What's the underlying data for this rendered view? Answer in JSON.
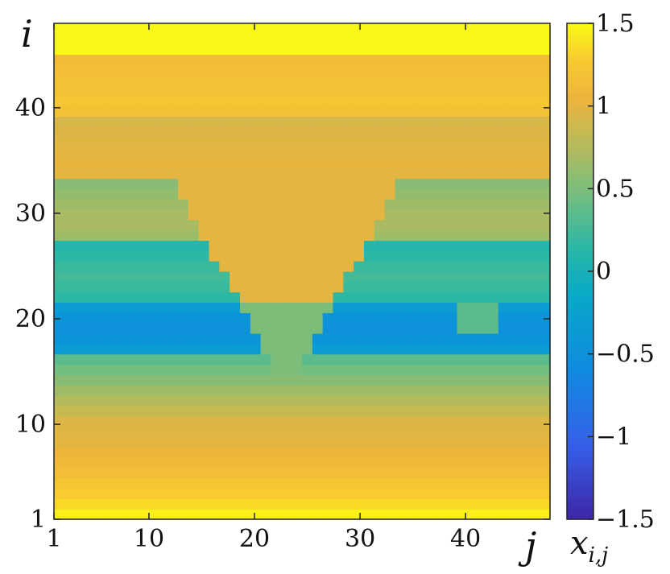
{
  "chart_data": {
    "type": "heatmap",
    "title": "",
    "xlabel": "j",
    "ylabel": "i",
    "x_range": [
      1,
      48
    ],
    "y_range": [
      1,
      48
    ],
    "x_ticks": [
      1,
      10,
      20,
      30,
      40
    ],
    "x_tick_labels": [
      "1",
      "10",
      "20",
      "30",
      "40"
    ],
    "y_ticks": [
      1,
      10,
      20,
      30,
      40
    ],
    "y_tick_labels": [
      "1",
      "10",
      "20",
      "30",
      "40"
    ],
    "colorbar": {
      "label_base": "x",
      "label_sub": "i,j",
      "range": [
        -1.5,
        1.5
      ],
      "ticks": [
        1.5,
        1,
        0.5,
        0,
        -0.5,
        -1,
        -1.5
      ],
      "tick_labels": [
        "1.5",
        "1",
        "0.5",
        "0",
        "−0.5",
        "−1",
        "−1.5"
      ],
      "colormap": "parula"
    },
    "row_values": [
      1.45,
      1.35,
      1.28,
      1.22,
      1.15,
      1.1,
      1.05,
      1.0,
      0.98,
      0.95,
      0.85,
      0.75,
      0.65,
      0.55,
      0.45,
      0.35,
      -0.35,
      -0.45,
      -0.5,
      -0.45,
      -0.35,
      0.15,
      0.2,
      0.25,
      0.2,
      0.15,
      0.1,
      0.65,
      0.7,
      0.7,
      0.65,
      0.6,
      0.55,
      1.0,
      1.02,
      1.0,
      0.98,
      0.95,
      0.92,
      1.2,
      1.22,
      1.2,
      1.18,
      1.15,
      1.12,
      1.48,
      1.48,
      1.48
    ],
    "bump_value": 1.05
  }
}
